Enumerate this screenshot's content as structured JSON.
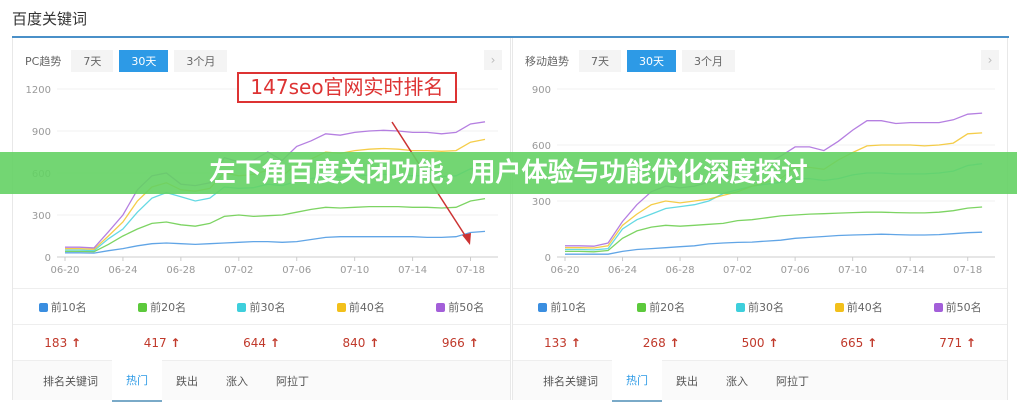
{
  "page_title": "百度关键词",
  "banner": "左下角百度关闭功能，用户体验与功能优化深度探讨",
  "annotation": "147seo官网实时排名",
  "legend": [
    {
      "label": "前10名",
      "color": "#3a8ee0"
    },
    {
      "label": "前20名",
      "color": "#5cc93c"
    },
    {
      "label": "前30名",
      "color": "#3ecfdc"
    },
    {
      "label": "前40名",
      "color": "#f2c01b"
    },
    {
      "label": "前50名",
      "color": "#a35fd9"
    }
  ],
  "range_buttons": [
    "7天",
    "30天",
    "3个月"
  ],
  "selected_range": "30天",
  "next_icon": "chevron-right-icon",
  "tabs": [
    "排名关键词",
    "热门",
    "跌出",
    "涨入",
    "阿拉丁"
  ],
  "active_tab": "热门",
  "panels": [
    {
      "label": "PC趋势",
      "values": [
        "183",
        "417",
        "644",
        "840",
        "966"
      ],
      "trend": "up"
    },
    {
      "label": "移动趋势",
      "values": [
        "133",
        "268",
        "500",
        "665",
        "771"
      ],
      "trend": "up"
    }
  ],
  "chart_data": [
    {
      "type": "line",
      "x": [
        "06-20",
        "06-21",
        "06-22",
        "06-23",
        "06-24",
        "06-25",
        "06-26",
        "06-27",
        "06-28",
        "06-29",
        "06-30",
        "07-01",
        "07-02",
        "07-03",
        "07-04",
        "07-05",
        "07-06",
        "07-07",
        "07-08",
        "07-09",
        "07-10",
        "07-11",
        "07-12",
        "07-13",
        "07-14",
        "07-15",
        "07-16",
        "07-17",
        "07-18",
        "07-19"
      ],
      "xticks": [
        "06-20",
        "06-24",
        "06-28",
        "07-02",
        "07-06",
        "07-10",
        "07-14",
        "07-18"
      ],
      "yticks": [
        0,
        300,
        600,
        900,
        1200
      ],
      "ylim": [
        0,
        1200
      ],
      "grid": true,
      "series": [
        {
          "name": "前10名",
          "values": [
            30,
            30,
            28,
            45,
            60,
            80,
            95,
            100,
            95,
            90,
            95,
            100,
            105,
            110,
            110,
            105,
            110,
            125,
            140,
            145,
            145,
            145,
            145,
            145,
            145,
            140,
            140,
            145,
            175,
            183
          ]
        },
        {
          "name": "前20名",
          "values": [
            40,
            40,
            38,
            90,
            150,
            200,
            240,
            250,
            230,
            220,
            240,
            290,
            300,
            290,
            295,
            300,
            320,
            340,
            355,
            350,
            355,
            360,
            360,
            360,
            355,
            355,
            350,
            355,
            400,
            417
          ]
        },
        {
          "name": "前30名",
          "values": [
            50,
            50,
            45,
            130,
            200,
            320,
            420,
            460,
            430,
            400,
            420,
            500,
            490,
            495,
            520,
            510,
            540,
            560,
            580,
            570,
            580,
            585,
            590,
            585,
            580,
            580,
            575,
            580,
            630,
            644
          ]
        },
        {
          "name": "前40名",
          "values": [
            60,
            60,
            55,
            150,
            250,
            400,
            500,
            530,
            480,
            470,
            490,
            600,
            580,
            590,
            620,
            580,
            660,
            700,
            750,
            740,
            760,
            770,
            775,
            770,
            760,
            760,
            755,
            760,
            820,
            840
          ]
        },
        {
          "name": "前50名",
          "values": [
            70,
            70,
            65,
            180,
            300,
            480,
            580,
            600,
            520,
            510,
            530,
            710,
            680,
            690,
            750,
            690,
            790,
            830,
            880,
            870,
            890,
            900,
            905,
            900,
            890,
            890,
            880,
            890,
            950,
            966
          ]
        }
      ]
    },
    {
      "type": "line",
      "x": [
        "06-20",
        "06-21",
        "06-22",
        "06-23",
        "06-24",
        "06-25",
        "06-26",
        "06-27",
        "06-28",
        "06-29",
        "06-30",
        "07-01",
        "07-02",
        "07-03",
        "07-04",
        "07-05",
        "07-06",
        "07-07",
        "07-08",
        "07-09",
        "07-10",
        "07-11",
        "07-12",
        "07-13",
        "07-14",
        "07-15",
        "07-16",
        "07-17",
        "07-18",
        "07-19"
      ],
      "xticks": [
        "06-20",
        "06-24",
        "06-28",
        "07-02",
        "07-06",
        "07-10",
        "07-14",
        "07-18"
      ],
      "yticks": [
        0,
        300,
        600,
        900
      ],
      "ylim": [
        0,
        900
      ],
      "grid": true,
      "series": [
        {
          "name": "前10名",
          "values": [
            15,
            15,
            15,
            15,
            30,
            40,
            45,
            50,
            55,
            60,
            70,
            75,
            78,
            80,
            85,
            90,
            100,
            105,
            110,
            115,
            118,
            120,
            122,
            120,
            118,
            118,
            120,
            125,
            130,
            133
          ]
        },
        {
          "name": "前20名",
          "values": [
            30,
            30,
            28,
            35,
            100,
            140,
            160,
            170,
            165,
            170,
            175,
            180,
            195,
            200,
            210,
            220,
            225,
            230,
            232,
            235,
            238,
            240,
            240,
            238,
            236,
            236,
            240,
            248,
            262,
            268
          ]
        },
        {
          "name": "前30名",
          "values": [
            40,
            40,
            38,
            45,
            150,
            200,
            230,
            260,
            270,
            280,
            300,
            340,
            360,
            380,
            390,
            400,
            420,
            420,
            410,
            420,
            440,
            450,
            450,
            445,
            445,
            445,
            450,
            460,
            490,
            500
          ]
        },
        {
          "name": "前40名",
          "values": [
            50,
            50,
            48,
            60,
            170,
            230,
            280,
            300,
            290,
            300,
            310,
            330,
            350,
            380,
            400,
            420,
            480,
            480,
            470,
            520,
            560,
            595,
            600,
            600,
            600,
            595,
            600,
            610,
            660,
            665
          ]
        },
        {
          "name": "前50名",
          "values": [
            60,
            60,
            58,
            75,
            190,
            280,
            350,
            380,
            370,
            380,
            400,
            420,
            450,
            470,
            500,
            540,
            590,
            590,
            570,
            620,
            680,
            730,
            730,
            715,
            720,
            720,
            720,
            735,
            765,
            771
          ]
        }
      ]
    }
  ]
}
